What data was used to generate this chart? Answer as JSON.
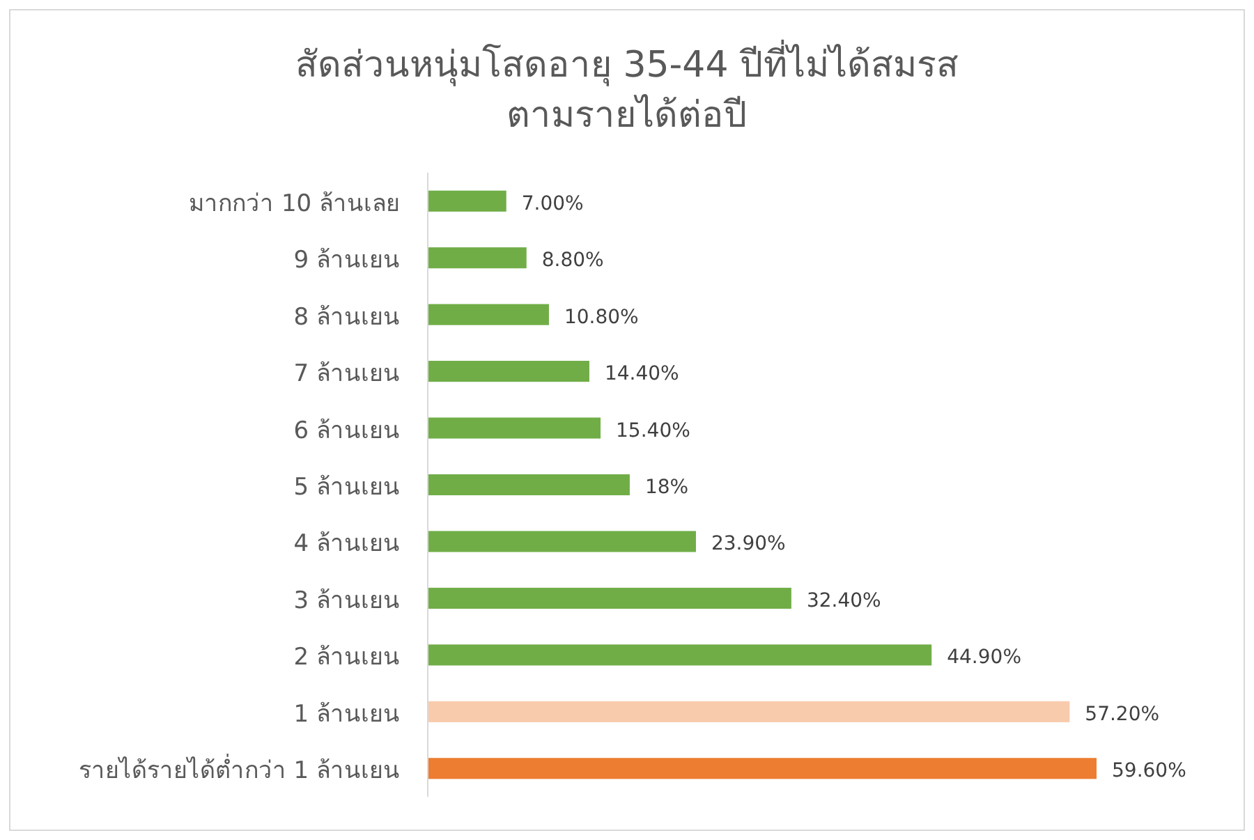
{
  "chart_data": {
    "type": "bar",
    "orientation": "horizontal",
    "title": "สัดส่วนหนุ่มโสดอายุ 35-44 ปีที่ไม่ได้สมรส\nตามรายได้ต่อปี",
    "categories": [
      "มากกว่า 10 ล้านเลย",
      "9 ล้านเยน",
      "8 ล้านเยน",
      "7 ล้านเยน",
      "6 ล้านเยน",
      "5 ล้านเยน",
      "4 ล้านเยน",
      "3 ล้านเยน",
      "2 ล้านเยน",
      "1 ล้านเยน",
      "รายได้รายได้ต่ำกว่า 1  ล้านเยน"
    ],
    "values": [
      7.0,
      8.8,
      10.8,
      14.4,
      15.4,
      18,
      23.9,
      32.4,
      44.9,
      57.2,
      59.6
    ],
    "value_labels": [
      "7.00%",
      "8.80%",
      "10.80%",
      "14.40%",
      "15.40%",
      "18%",
      "23.90%",
      "32.40%",
      "44.90%",
      "57.20%",
      "59.60%"
    ],
    "colors": [
      "#70ad47",
      "#70ad47",
      "#70ad47",
      "#70ad47",
      "#70ad47",
      "#70ad47",
      "#70ad47",
      "#70ad47",
      "#70ad47",
      "#f8cbad",
      "#ed7d31"
    ]
  }
}
